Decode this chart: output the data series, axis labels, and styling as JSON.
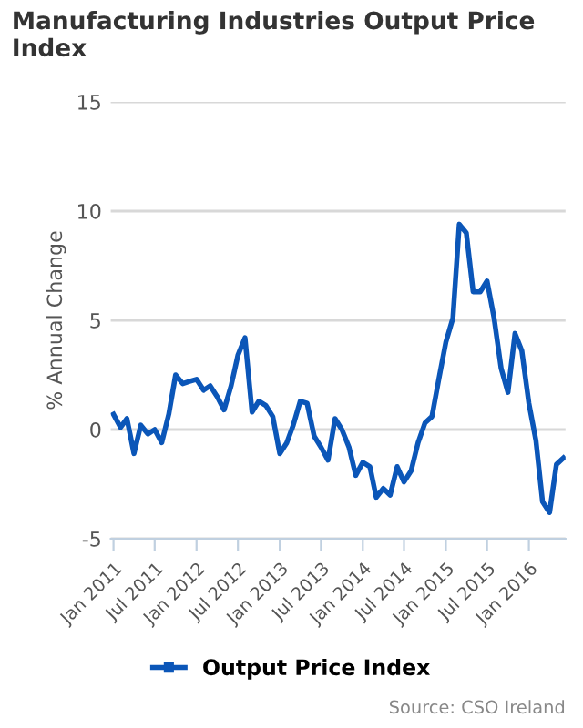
{
  "chart_data": {
    "type": "line",
    "title": "Manufacturing Industries Output Price Index",
    "ylabel": "% Annual Change",
    "x": [
      "2011-01",
      "2011-02",
      "2011-03",
      "2011-04",
      "2011-05",
      "2011-06",
      "2011-07",
      "2011-08",
      "2011-09",
      "2011-10",
      "2011-11",
      "2011-12",
      "2012-01",
      "2012-02",
      "2012-03",
      "2012-04",
      "2012-05",
      "2012-06",
      "2012-07",
      "2012-08",
      "2012-09",
      "2012-10",
      "2012-11",
      "2012-12",
      "2013-01",
      "2013-02",
      "2013-03",
      "2013-04",
      "2013-05",
      "2013-06",
      "2013-07",
      "2013-08",
      "2013-09",
      "2013-10",
      "2013-11",
      "2013-12",
      "2014-01",
      "2014-02",
      "2014-03",
      "2014-04",
      "2014-05",
      "2014-06",
      "2014-07",
      "2014-08",
      "2014-09",
      "2014-10",
      "2014-11",
      "2014-12",
      "2015-01",
      "2015-02",
      "2015-03",
      "2015-04",
      "2015-05",
      "2015-06",
      "2015-07",
      "2015-08",
      "2015-09",
      "2015-10",
      "2015-11",
      "2015-12",
      "2016-01",
      "2016-02",
      "2016-03",
      "2016-04",
      "2016-05",
      "2016-06"
    ],
    "series": [
      {
        "name": "Output Price Index",
        "color": "#0b56b8",
        "values": [
          0.7,
          0.1,
          0.5,
          -1.1,
          0.2,
          -0.2,
          0.0,
          -0.6,
          0.7,
          2.5,
          2.1,
          2.2,
          2.3,
          1.8,
          2.0,
          1.5,
          0.9,
          2.0,
          3.4,
          4.2,
          0.8,
          1.3,
          1.1,
          0.6,
          -1.1,
          -0.6,
          0.2,
          1.3,
          1.2,
          -0.3,
          -0.8,
          -1.4,
          0.5,
          0.0,
          -0.8,
          -2.1,
          -1.5,
          -1.7,
          -3.1,
          -2.7,
          -3.0,
          -1.7,
          -2.4,
          -1.9,
          -0.6,
          0.3,
          0.6,
          2.3,
          4.0,
          5.1,
          9.4,
          9.0,
          6.3,
          6.3,
          6.8,
          5.1,
          2.8,
          1.7,
          4.4,
          3.6,
          1.2,
          -0.5,
          -3.3,
          -3.8,
          -1.6,
          -1.3
        ]
      }
    ],
    "xlim": [
      "2010-12-20",
      "2016-06-10"
    ],
    "xticks": [
      {
        "value": "2011-01",
        "label": "Jan 2011"
      },
      {
        "value": "2011-07",
        "label": "Jul 2011"
      },
      {
        "value": "2012-01",
        "label": "Jan 2012"
      },
      {
        "value": "2012-07",
        "label": "Jul 2012"
      },
      {
        "value": "2013-01",
        "label": "Jan 2013"
      },
      {
        "value": "2013-07",
        "label": "Jul 2013"
      },
      {
        "value": "2014-01",
        "label": "Jan 2014"
      },
      {
        "value": "2014-07",
        "label": "Jul 2014"
      },
      {
        "value": "2015-01",
        "label": "Jan 2015"
      },
      {
        "value": "2015-07",
        "label": "Jul 2015"
      },
      {
        "value": "2016-01",
        "label": "Jan 2016"
      }
    ],
    "ylim": [
      -5,
      15
    ],
    "yticks": [
      -5,
      0,
      5,
      10,
      15
    ],
    "grid": "y",
    "legend": "bottom",
    "marker": "none",
    "line_style": "solid",
    "annotations": [
      "Source: CSO Ireland"
    ]
  }
}
